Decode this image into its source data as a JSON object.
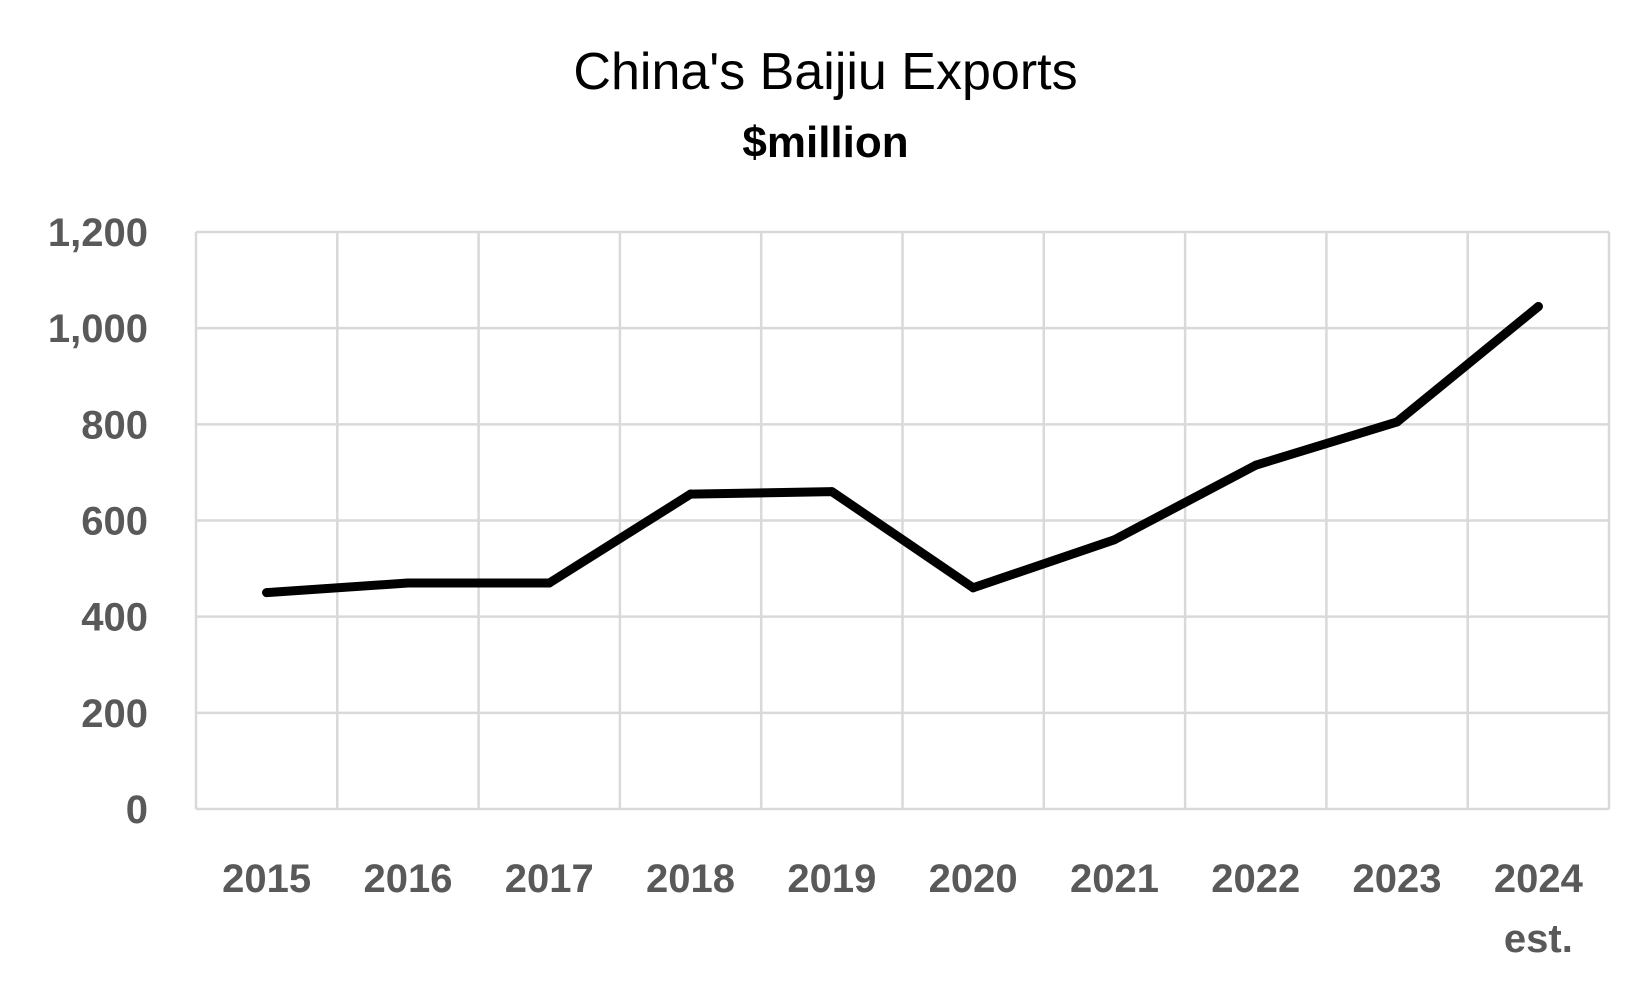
{
  "chart_data": {
    "type": "line",
    "title": "China's Baijiu Exports",
    "subtitle": "$million",
    "xlabel": "",
    "ylabel": "",
    "categories": [
      "2015",
      "2016",
      "2017",
      "2018",
      "2019",
      "2020",
      "2021",
      "2022",
      "2023",
      "2024"
    ],
    "category_sublabels": [
      "",
      "",
      "",
      "",
      "",
      "",
      "",
      "",
      "",
      "est."
    ],
    "values": [
      450,
      470,
      470,
      655,
      660,
      460,
      560,
      715,
      805,
      1045
    ],
    "ylim": [
      0,
      1200
    ],
    "yticks": [
      0,
      200,
      400,
      600,
      800,
      1000,
      1200
    ],
    "ytick_labels": [
      "0",
      "200",
      "400",
      "600",
      "800",
      "1,000",
      "1,200"
    ],
    "grid": true,
    "legend": "none",
    "colors": {
      "line": "#000000",
      "grid": "#d9d9d9",
      "tick_text": "#595959"
    }
  }
}
